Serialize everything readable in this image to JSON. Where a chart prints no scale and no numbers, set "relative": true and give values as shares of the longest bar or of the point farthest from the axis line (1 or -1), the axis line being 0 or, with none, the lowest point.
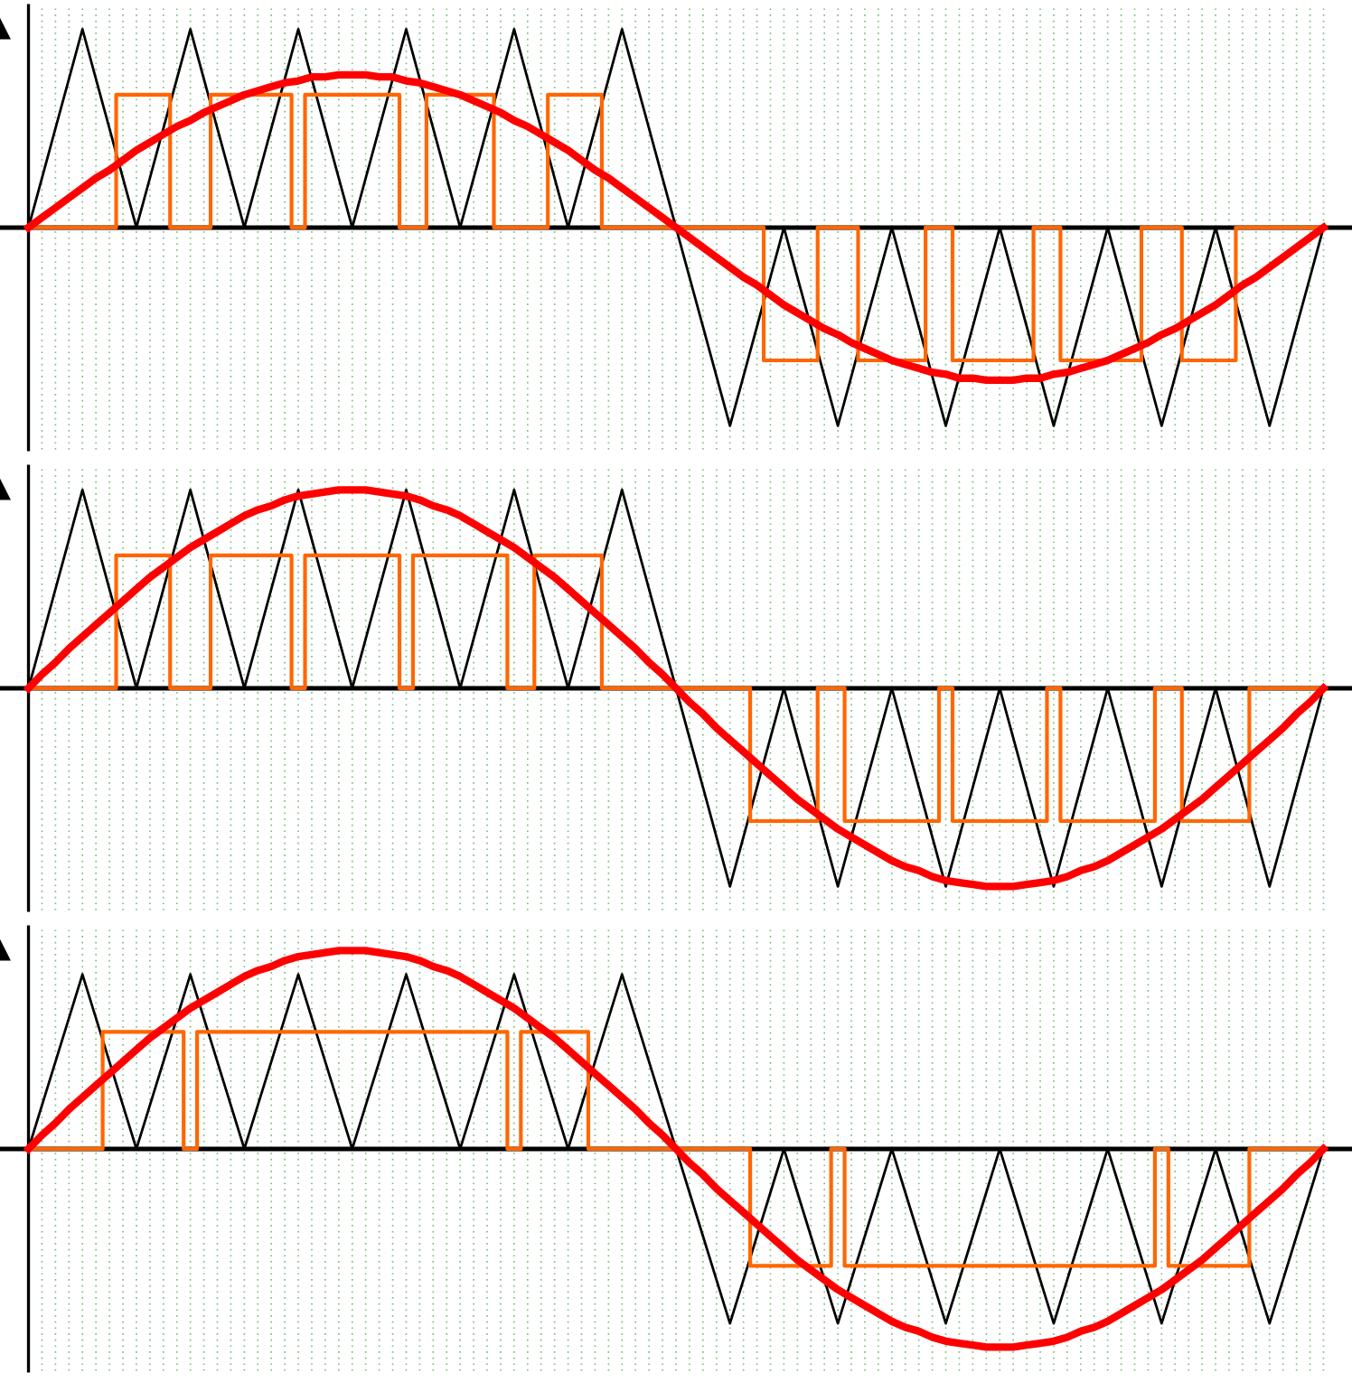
{
  "chart_data": [
    {
      "type": "line",
      "relative": true,
      "grid": "x",
      "categories": [
        null,
        null,
        null,
        null,
        null,
        null,
        null,
        null,
        null,
        null,
        null,
        null,
        null,
        null,
        null,
        null,
        null,
        null,
        null,
        null,
        null,
        null,
        null,
        null,
        null,
        null,
        null,
        null,
        null,
        null,
        null,
        null,
        null,
        null,
        null,
        null,
        null,
        null,
        null,
        null,
        null,
        null,
        null,
        null,
        null,
        null,
        null,
        null,
        null,
        null,
        null,
        null,
        null,
        null,
        null,
        null,
        null,
        null,
        null,
        null,
        null,
        null,
        null,
        null,
        null,
        null,
        null,
        null,
        null,
        null,
        null,
        null,
        null,
        null,
        null,
        null,
        null,
        null,
        null,
        null,
        null,
        null,
        null,
        null,
        null,
        null,
        null,
        null,
        null,
        null,
        null,
        null,
        null,
        null,
        null,
        null,
        null
      ],
      "series": [
        {
          "color": "#000000",
          "values": [
            0,
            0.25,
            0.5,
            0.75,
            1,
            0.75,
            0.5,
            0.25,
            0,
            0.25,
            0.5,
            0.75,
            1,
            0.75,
            0.5,
            0.25,
            0,
            0.25,
            0.5,
            0.75,
            1,
            0.75,
            0.5,
            0.25,
            0,
            0.25,
            0.5,
            0.75,
            1,
            0.75,
            0.5,
            0.25,
            0,
            0.25,
            0.5,
            0.75,
            1,
            0.75,
            0.5,
            0.25,
            0,
            0.25,
            0.5,
            0.75,
            1,
            0.75,
            0.5,
            0.25,
            0,
            -0.25,
            -0.5,
            -0.75,
            -1,
            -0.75,
            -0.5,
            -0.25,
            0,
            -0.25,
            -0.5,
            -0.75,
            -1,
            -0.75,
            -0.5,
            -0.25,
            0,
            -0.25,
            -0.5,
            -0.75,
            -1,
            -0.75,
            -0.5,
            -0.25,
            0,
            -0.25,
            -0.5,
            -0.75,
            -1,
            -0.75,
            -0.5,
            -0.25,
            0,
            -0.25,
            -0.5,
            -0.75,
            -1,
            -0.75,
            -0.5,
            -0.25,
            0,
            -0.25,
            -0.5,
            -0.75,
            -1,
            -0.75,
            -0.5,
            -0.25,
            0
          ]
        },
        {
          "type": "step",
          "color": "#ff6600",
          "values": [
            0,
            0,
            0,
            0,
            0,
            0,
            0,
            0.67,
            0.67,
            0.67,
            0.67,
            0,
            0,
            0,
            0.67,
            0.67,
            0.67,
            0.67,
            0.67,
            0.67,
            0,
            0.67,
            0.67,
            0.67,
            0.67,
            0.67,
            0.67,
            0.67,
            0,
            0,
            0.67,
            0.67,
            0.67,
            0.67,
            0.67,
            0,
            0,
            0,
            0,
            0.67,
            0.67,
            0.67,
            0.67,
            0,
            0,
            0,
            0,
            0,
            0,
            0,
            0,
            0,
            0,
            0,
            0,
            -0.67,
            -0.67,
            -0.67,
            -0.67,
            0,
            0,
            0,
            -0.67,
            -0.67,
            -0.67,
            -0.67,
            -0.67,
            0,
            0,
            -0.67,
            -0.67,
            -0.67,
            -0.67,
            -0.67,
            -0.67,
            0,
            0,
            -0.67,
            -0.67,
            -0.67,
            -0.67,
            -0.67,
            -0.67,
            0,
            0,
            0,
            -0.67,
            -0.67,
            -0.67,
            -0.67,
            0,
            0,
            0,
            0,
            0,
            0,
            0
          ]
        },
        {
          "color": "#ff0000",
          "values": [
            0,
            0.05,
            0.1,
            0.15,
            0.2,
            0.25,
            0.29,
            0.34,
            0.39,
            0.43,
            0.47,
            0.51,
            0.54,
            0.58,
            0.61,
            0.64,
            0.67,
            0.69,
            0.71,
            0.73,
            0.74,
            0.76,
            0.76,
            0.77,
            0.77,
            0.77,
            0.76,
            0.76,
            0.74,
            0.73,
            0.71,
            0.69,
            0.67,
            0.64,
            0.61,
            0.58,
            0.54,
            0.51,
            0.47,
            0.43,
            0.39,
            0.34,
            0.29,
            0.25,
            0.2,
            0.15,
            0.1,
            0.05,
            0,
            -0.05,
            -0.1,
            -0.15,
            -0.2,
            -0.25,
            -0.29,
            -0.34,
            -0.39,
            -0.43,
            -0.47,
            -0.51,
            -0.54,
            -0.58,
            -0.61,
            -0.64,
            -0.67,
            -0.69,
            -0.71,
            -0.73,
            -0.74,
            -0.76,
            -0.76,
            -0.77,
            -0.77,
            -0.77,
            -0.76,
            -0.76,
            -0.74,
            -0.73,
            -0.71,
            -0.69,
            -0.67,
            -0.64,
            -0.61,
            -0.58,
            -0.54,
            -0.51,
            -0.47,
            -0.43,
            -0.39,
            -0.34,
            -0.29,
            -0.25,
            -0.2,
            -0.15,
            -0.1,
            -0.05,
            0
          ]
        }
      ]
    },
    {
      "type": "line",
      "relative": true,
      "grid": "x",
      "categories": [
        null,
        null,
        null,
        null,
        null,
        null,
        null,
        null,
        null,
        null,
        null,
        null,
        null,
        null,
        null,
        null,
        null,
        null,
        null,
        null,
        null,
        null,
        null,
        null,
        null,
        null,
        null,
        null,
        null,
        null,
        null,
        null,
        null,
        null,
        null,
        null,
        null,
        null,
        null,
        null,
        null,
        null,
        null,
        null,
        null,
        null,
        null,
        null,
        null,
        null,
        null,
        null,
        null,
        null,
        null,
        null,
        null,
        null,
        null,
        null,
        null,
        null,
        null,
        null,
        null,
        null,
        null,
        null,
        null,
        null,
        null,
        null,
        null,
        null,
        null,
        null,
        null,
        null,
        null,
        null,
        null,
        null,
        null,
        null,
        null,
        null,
        null,
        null,
        null,
        null,
        null,
        null,
        null,
        null,
        null,
        null,
        null
      ],
      "series": [
        {
          "color": "#000000",
          "values": [
            0,
            0.25,
            0.5,
            0.75,
            1,
            0.75,
            0.5,
            0.25,
            0,
            0.25,
            0.5,
            0.75,
            1,
            0.75,
            0.5,
            0.25,
            0,
            0.25,
            0.5,
            0.75,
            1,
            0.75,
            0.5,
            0.25,
            0,
            0.25,
            0.5,
            0.75,
            1,
            0.75,
            0.5,
            0.25,
            0,
            0.25,
            0.5,
            0.75,
            1,
            0.75,
            0.5,
            0.25,
            0,
            0.25,
            0.5,
            0.75,
            1,
            0.75,
            0.5,
            0.25,
            0,
            -0.25,
            -0.5,
            -0.75,
            -1,
            -0.75,
            -0.5,
            -0.25,
            0,
            -0.25,
            -0.5,
            -0.75,
            -1,
            -0.75,
            -0.5,
            -0.25,
            0,
            -0.25,
            -0.5,
            -0.75,
            -1,
            -0.75,
            -0.5,
            -0.25,
            0,
            -0.25,
            -0.5,
            -0.75,
            -1,
            -0.75,
            -0.5,
            -0.25,
            0,
            -0.25,
            -0.5,
            -0.75,
            -1,
            -0.75,
            -0.5,
            -0.25,
            0,
            -0.25,
            -0.5,
            -0.75,
            -1,
            -0.75,
            -0.5,
            -0.25,
            0
          ]
        },
        {
          "type": "step",
          "color": "#ff6600",
          "values": [
            0,
            0,
            0,
            0,
            0,
            0,
            0,
            0.67,
            0.67,
            0.67,
            0.67,
            0,
            0,
            0,
            0.67,
            0.67,
            0.67,
            0.67,
            0.67,
            0.67,
            0,
            0.67,
            0.67,
            0.67,
            0.67,
            0.67,
            0.67,
            0.67,
            0,
            0.67,
            0.67,
            0.67,
            0.67,
            0.67,
            0.67,
            0.67,
            0,
            0,
            0.67,
            0.67,
            0.67,
            0.67,
            0.67,
            0,
            0,
            0,
            0,
            0,
            0,
            0,
            0,
            0,
            0,
            0,
            -0.67,
            -0.67,
            -0.67,
            -0.67,
            -0.67,
            0,
            0,
            -0.67,
            -0.67,
            -0.67,
            -0.67,
            -0.67,
            -0.67,
            -0.67,
            0,
            -0.67,
            -0.67,
            -0.67,
            -0.67,
            -0.67,
            -0.67,
            -0.67,
            0,
            -0.67,
            -0.67,
            -0.67,
            -0.67,
            -0.67,
            -0.67,
            -0.67,
            0,
            0,
            -0.67,
            -0.67,
            -0.67,
            -0.67,
            -0.67,
            0,
            0,
            0,
            0,
            0,
            0
          ]
        },
        {
          "color": "#ff0000",
          "values": [
            0,
            0.07,
            0.13,
            0.2,
            0.26,
            0.32,
            0.38,
            0.44,
            0.5,
            0.56,
            0.61,
            0.66,
            0.71,
            0.75,
            0.79,
            0.83,
            0.87,
            0.9,
            0.92,
            0.95,
            0.97,
            0.98,
            0.99,
            1,
            1,
            1,
            0.99,
            0.98,
            0.97,
            0.95,
            0.92,
            0.9,
            0.87,
            0.83,
            0.79,
            0.75,
            0.71,
            0.66,
            0.61,
            0.56,
            0.5,
            0.44,
            0.38,
            0.32,
            0.26,
            0.2,
            0.13,
            0.07,
            0,
            -0.07,
            -0.13,
            -0.2,
            -0.26,
            -0.32,
            -0.38,
            -0.44,
            -0.5,
            -0.56,
            -0.61,
            -0.66,
            -0.71,
            -0.75,
            -0.79,
            -0.83,
            -0.87,
            -0.9,
            -0.92,
            -0.95,
            -0.97,
            -0.98,
            -0.99,
            -1,
            -1,
            -1,
            -0.99,
            -0.98,
            -0.97,
            -0.95,
            -0.92,
            -0.9,
            -0.87,
            -0.83,
            -0.79,
            -0.75,
            -0.71,
            -0.66,
            -0.61,
            -0.56,
            -0.5,
            -0.44,
            -0.38,
            -0.32,
            -0.26,
            -0.2,
            -0.13,
            -0.07,
            0
          ]
        }
      ]
    },
    {
      "type": "line",
      "relative": true,
      "grid": "x",
      "categories": [
        null,
        null,
        null,
        null,
        null,
        null,
        null,
        null,
        null,
        null,
        null,
        null,
        null,
        null,
        null,
        null,
        null,
        null,
        null,
        null,
        null,
        null,
        null,
        null,
        null,
        null,
        null,
        null,
        null,
        null,
        null,
        null,
        null,
        null,
        null,
        null,
        null,
        null,
        null,
        null,
        null,
        null,
        null,
        null,
        null,
        null,
        null,
        null,
        null,
        null,
        null,
        null,
        null,
        null,
        null,
        null,
        null,
        null,
        null,
        null,
        null,
        null,
        null,
        null,
        null,
        null,
        null,
        null,
        null,
        null,
        null,
        null,
        null,
        null,
        null,
        null,
        null,
        null,
        null,
        null,
        null,
        null,
        null,
        null,
        null,
        null,
        null,
        null,
        null,
        null,
        null,
        null,
        null,
        null,
        null,
        null,
        null
      ],
      "series": [
        {
          "color": "#000000",
          "values": [
            0,
            0.22,
            0.44,
            0.66,
            0.88,
            0.66,
            0.44,
            0.22,
            0,
            0.22,
            0.44,
            0.66,
            0.88,
            0.66,
            0.44,
            0.22,
            0,
            0.22,
            0.44,
            0.66,
            0.88,
            0.66,
            0.44,
            0.22,
            0,
            0.22,
            0.44,
            0.66,
            0.88,
            0.66,
            0.44,
            0.22,
            0,
            0.22,
            0.44,
            0.66,
            0.88,
            0.66,
            0.44,
            0.22,
            0,
            0.22,
            0.44,
            0.66,
            0.88,
            0.66,
            0.44,
            0.22,
            0,
            -0.22,
            -0.44,
            -0.66,
            -0.88,
            -0.66,
            -0.44,
            -0.22,
            0,
            -0.22,
            -0.44,
            -0.66,
            -0.88,
            -0.66,
            -0.44,
            -0.22,
            0,
            -0.22,
            -0.44,
            -0.66,
            -0.88,
            -0.66,
            -0.44,
            -0.22,
            0,
            -0.22,
            -0.44,
            -0.66,
            -0.88,
            -0.66,
            -0.44,
            -0.22,
            0,
            -0.22,
            -0.44,
            -0.66,
            -0.88,
            -0.66,
            -0.44,
            -0.22,
            0,
            -0.22,
            -0.44,
            -0.66,
            -0.88,
            -0.66,
            -0.44,
            -0.22,
            0
          ]
        },
        {
          "type": "step",
          "color": "#ff6600",
          "values": [
            0,
            0,
            0,
            0,
            0,
            0,
            0.59,
            0.59,
            0.59,
            0.59,
            0.59,
            0.59,
            0,
            0.59,
            0.59,
            0.59,
            0.59,
            0.59,
            0.59,
            0.59,
            0.59,
            0.59,
            0.59,
            0.59,
            0.59,
            0.59,
            0.59,
            0.59,
            0.59,
            0.59,
            0.59,
            0.59,
            0.59,
            0.59,
            0.59,
            0.59,
            0,
            0.59,
            0.59,
            0.59,
            0.59,
            0.59,
            0,
            0,
            0,
            0,
            0,
            0,
            0,
            0,
            0,
            0,
            0,
            0,
            -0.59,
            -0.59,
            -0.59,
            -0.59,
            -0.59,
            -0.59,
            0,
            -0.59,
            -0.59,
            -0.59,
            -0.59,
            -0.59,
            -0.59,
            -0.59,
            -0.59,
            -0.59,
            -0.59,
            -0.59,
            -0.59,
            -0.59,
            -0.59,
            -0.59,
            -0.59,
            -0.59,
            -0.59,
            -0.59,
            -0.59,
            -0.59,
            -0.59,
            -0.59,
            0,
            -0.59,
            -0.59,
            -0.59,
            -0.59,
            -0.59,
            -0.59,
            0,
            0,
            0,
            0,
            0,
            0
          ]
        },
        {
          "color": "#ff0000",
          "values": [
            0,
            0.07,
            0.13,
            0.2,
            0.26,
            0.32,
            0.38,
            0.44,
            0.5,
            0.56,
            0.61,
            0.66,
            0.71,
            0.75,
            0.79,
            0.83,
            0.87,
            0.9,
            0.92,
            0.95,
            0.97,
            0.98,
            0.99,
            1,
            1,
            1,
            0.99,
            0.98,
            0.97,
            0.95,
            0.92,
            0.9,
            0.87,
            0.83,
            0.79,
            0.75,
            0.71,
            0.66,
            0.61,
            0.56,
            0.5,
            0.44,
            0.38,
            0.32,
            0.26,
            0.2,
            0.13,
            0.07,
            0,
            -0.07,
            -0.13,
            -0.2,
            -0.26,
            -0.32,
            -0.38,
            -0.44,
            -0.5,
            -0.56,
            -0.61,
            -0.66,
            -0.71,
            -0.75,
            -0.79,
            -0.83,
            -0.87,
            -0.9,
            -0.92,
            -0.95,
            -0.97,
            -0.98,
            -0.99,
            -1,
            -1,
            -1,
            -0.99,
            -0.98,
            -0.97,
            -0.95,
            -0.92,
            -0.9,
            -0.87,
            -0.83,
            -0.79,
            -0.75,
            -0.71,
            -0.66,
            -0.61,
            -0.56,
            -0.5,
            -0.44,
            -0.38,
            -0.32,
            -0.26,
            -0.2,
            -0.13,
            -0.07,
            0
          ]
        }
      ]
    }
  ]
}
